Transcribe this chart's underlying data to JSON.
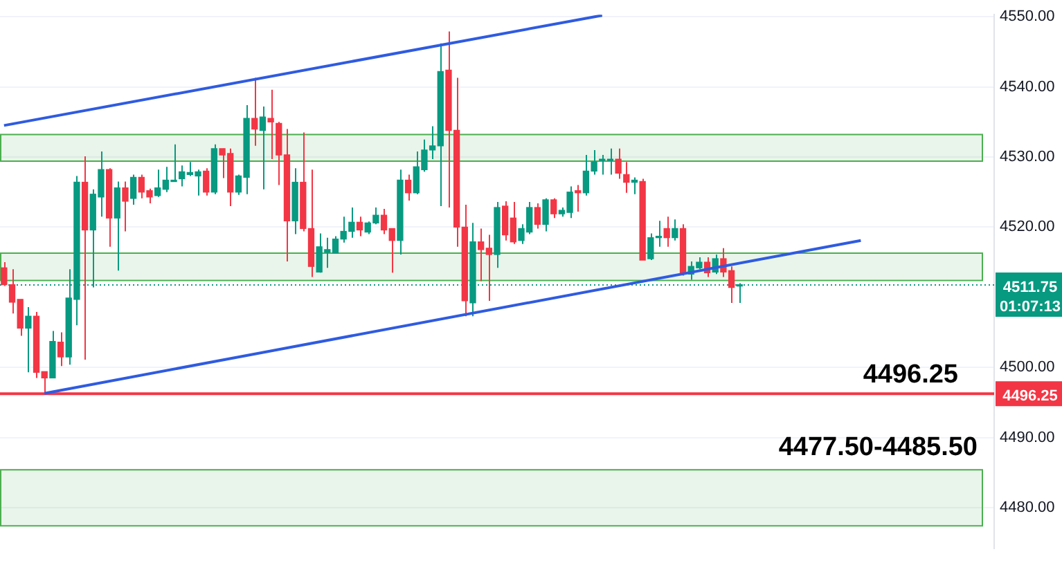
{
  "chart_data": {
    "type": "candlestick",
    "categories": [
      null,
      null,
      null,
      null,
      null,
      null,
      null,
      null,
      null,
      null,
      null,
      null,
      null,
      null,
      null,
      null,
      null,
      null,
      null,
      null,
      null,
      null,
      null,
      null,
      null,
      null,
      null,
      null,
      null,
      null,
      null,
      null,
      null,
      null,
      null,
      null,
      null,
      null,
      null,
      null,
      null,
      null,
      null,
      null,
      null,
      null,
      null,
      null,
      null,
      null,
      null,
      null,
      null,
      null,
      null,
      null,
      null,
      null,
      null,
      null,
      null,
      null,
      null,
      null,
      null,
      null,
      null,
      null,
      null,
      null,
      null,
      null,
      null,
      null,
      null,
      null,
      null,
      null,
      null,
      null,
      null,
      null,
      null,
      null,
      null,
      null,
      null,
      null,
      null,
      null,
      null,
      null,
      null,
      null,
      null,
      null,
      null,
      null,
      null,
      null,
      null,
      null,
      null,
      null,
      null,
      null,
      null,
      null,
      null,
      null,
      null,
      null,
      null,
      null,
      null,
      null,
      null,
      null,
      null,
      null,
      null,
      null,
      null
    ],
    "ohlc": [
      [
        4514.2,
        4515,
        4511.6,
        4511.8
      ],
      [
        4511.8,
        4514,
        4507.7,
        4509.3
      ],
      [
        4509.7,
        4509.7,
        4504.5,
        4505.6
      ],
      [
        4505.6,
        4508.6,
        4499.3,
        4507.3
      ],
      [
        4507.3,
        4507.9,
        4498.5,
        4499.3
      ],
      [
        4499.4,
        4499.4,
        4496.25,
        4498.5
      ],
      [
        4498.5,
        4505.2,
        4498.5,
        4503.7
      ],
      [
        4503.6,
        4505,
        4500.2,
        4501.5
      ],
      [
        4501.5,
        4514,
        4500.4,
        4509.9
      ],
      [
        4509.7,
        4527.3,
        4506,
        4526.4
      ],
      [
        4526.4,
        4530.1,
        4501.1,
        4519.6
      ],
      [
        4519.6,
        4525.4,
        4511.4,
        4524.7
      ],
      [
        4524.3,
        4530.8,
        4521.5,
        4528.2
      ],
      [
        4528.2,
        4528.4,
        4517.2,
        4521.3
      ],
      [
        4521.3,
        4526.5,
        4513.8,
        4525.6
      ],
      [
        4525.6,
        4526.5,
        4519.4,
        4523.7
      ],
      [
        4524.1,
        4527.5,
        4523.2,
        4527.1
      ],
      [
        4527.1,
        4527.5,
        4524.1,
        4525
      ],
      [
        4525.2,
        4525.5,
        4523.4,
        4524.3
      ],
      [
        4524.5,
        4528.2,
        4524.3,
        4525.6
      ],
      [
        4525.4,
        4528.6,
        4525,
        4526.7
      ],
      [
        4526.5,
        4531.8,
        4526.5,
        4526.7
      ],
      [
        4526.9,
        4528.8,
        4525.8,
        4527.9
      ],
      [
        4527.5,
        4529.3,
        4527.3,
        4527.8
      ],
      [
        4527.3,
        4528.2,
        4524.5,
        4527.9
      ],
      [
        4528,
        4528.4,
        4524.5,
        4525
      ],
      [
        4525,
        4531.8,
        4524.7,
        4531.2
      ],
      [
        4531.2,
        4531.2,
        4527,
        4530.3
      ],
      [
        4530.5,
        4531.2,
        4523,
        4525
      ],
      [
        4525,
        4527.5,
        4524.6,
        4527.3
      ],
      [
        4527.1,
        4537.4,
        4524.7,
        4535.5
      ],
      [
        4535.5,
        4541.3,
        4531.6,
        4534
      ],
      [
        4533.8,
        4537.2,
        4525.4,
        4535.7
      ],
      [
        4535.5,
        4539.6,
        4529.7,
        4535
      ],
      [
        4534.8,
        4535,
        4526,
        4530.3
      ],
      [
        4530.3,
        4534,
        4515.1,
        4520.9
      ],
      [
        4520.9,
        4528.4,
        4519,
        4526.4
      ],
      [
        4526.4,
        4533.5,
        4519.4,
        4519.8
      ],
      [
        4519.8,
        4528.2,
        4512.9,
        4514.4
      ],
      [
        4513.6,
        4519.1,
        4513.5,
        4517.2
      ],
      [
        4516.4,
        4518.5,
        4514.2,
        4516.8
      ],
      [
        4516.3,
        4518.7,
        4516.3,
        4518.3
      ],
      [
        4518.3,
        4521.5,
        4517.8,
        4519.4
      ],
      [
        4519.4,
        4522.8,
        4518.5,
        4520.7
      ],
      [
        4520.7,
        4521.5,
        4518.7,
        4519.6
      ],
      [
        4519.3,
        4520.8,
        4519,
        4520.6
      ],
      [
        4520.6,
        4522.8,
        4520.4,
        4521.7
      ],
      [
        4521.7,
        4522.6,
        4519,
        4519.6
      ],
      [
        4519.8,
        4519.8,
        4513.5,
        4518.1
      ],
      [
        4518.1,
        4528.2,
        4516.1,
        4526.7
      ],
      [
        4526.7,
        4527.5,
        4523.8,
        4524.9
      ],
      [
        4524.9,
        4530.8,
        4524.7,
        4528.6
      ],
      [
        4528.2,
        4532.5,
        4527.9,
        4531
      ],
      [
        4531,
        4534.4,
        4529.7,
        4531.6
      ],
      [
        4531.6,
        4546.2,
        4523,
        4542.2
      ],
      [
        4542.4,
        4547.9,
        4522.8,
        4533.8
      ],
      [
        4533.8,
        4541.3,
        4517.2,
        4520
      ],
      [
        4520,
        4523.2,
        4507.3,
        4509.5
      ],
      [
        4509.2,
        4520.6,
        4507.3,
        4517.9
      ],
      [
        4517.9,
        4519.8,
        4512.3,
        4516.8
      ],
      [
        4517,
        4518.9,
        4509.5,
        4516.1
      ],
      [
        4516.1,
        4523.6,
        4514.2,
        4522.8
      ],
      [
        4523,
        4523.7,
        4518.1,
        4518.9
      ],
      [
        4521.3,
        4523.6,
        4517.6,
        4517.9
      ],
      [
        4518.1,
        4520.4,
        4517.6,
        4519.8
      ],
      [
        4519.3,
        4523.6,
        4519,
        4522.8
      ],
      [
        4522.8,
        4523.4,
        4519.8,
        4520.4
      ],
      [
        4520.4,
        4524.1,
        4519.4,
        4523.9
      ],
      [
        4523.9,
        4524.1,
        4521.3,
        4521.9
      ],
      [
        4521.9,
        4522.8,
        4521.5,
        4522.4
      ],
      [
        4522.1,
        4525.8,
        4521.3,
        4525
      ],
      [
        4525.2,
        4526,
        4522.2,
        4524.9
      ],
      [
        4524.9,
        4530.3,
        4524.5,
        4528
      ],
      [
        4528,
        4531,
        4527.5,
        4529.3
      ],
      [
        4529.5,
        4530.3,
        4527.5,
        4529.7
      ],
      [
        4529.5,
        4531.2,
        4527.5,
        4529.7
      ],
      [
        4529.7,
        4531.2,
        4526.9,
        4527.7
      ],
      [
        4527.5,
        4529.3,
        4524.9,
        4526.4
      ],
      [
        4526.4,
        4527.1,
        4524.7,
        4526.7
      ],
      [
        4526.5,
        4526.9,
        4515.3,
        4515.3
      ],
      [
        4515.5,
        4519.1,
        4515.3,
        4518.5
      ],
      [
        4518.5,
        4520.9,
        4517.2,
        4518.7
      ],
      [
        4519.8,
        4521.5,
        4517.2,
        4518.5
      ],
      [
        4518.5,
        4521.1,
        4518.1,
        4519.8
      ],
      [
        4519.8,
        4520.4,
        4513.1,
        4513.3
      ],
      [
        4513.3,
        4515.1,
        4512.5,
        4514.4
      ],
      [
        4514.2,
        4515.7,
        4514,
        4515
      ],
      [
        4515,
        4515.7,
        4512.9,
        4513.5
      ],
      [
        4513.6,
        4516.1,
        4513.3,
        4515.5
      ],
      [
        4515.5,
        4517,
        4512.9,
        4513.6
      ],
      [
        4513.8,
        4514.4,
        4509.2,
        4511.4
      ],
      [
        4511.6,
        4512,
        4509.2,
        4511.75
      ],
      null,
      null,
      null,
      null,
      null,
      null,
      null,
      null,
      null,
      null,
      null,
      null,
      null,
      null,
      null,
      null,
      null,
      null,
      null,
      null,
      null,
      null,
      null,
      null,
      null,
      null,
      null,
      null,
      null,
      null,
      null
    ],
    "colors": [
      "#f23645",
      "#f23645",
      "#f23645",
      "#089981",
      "#f23645",
      "#f23645",
      "#089981",
      "#f23645",
      "#089981",
      "#089981",
      "#f23645",
      "#089981",
      "#089981",
      "#f23645",
      "#089981",
      "#f23645",
      "#089981",
      "#f23645",
      "#f23645",
      "#089981",
      "#089981",
      "#089981",
      "#089981",
      "#089981",
      "#089981",
      "#f23645",
      "#089981",
      "#f23645",
      "#f23645",
      "#089981",
      "#089981",
      "#f23645",
      "#089981",
      "#f23645",
      "#f23645",
      "#f23645",
      "#089981",
      "#f23645",
      "#f23645",
      "#089981",
      "#089981",
      "#089981",
      "#089981",
      "#089981",
      "#f23645",
      "#089981",
      "#089981",
      "#f23645",
      "#f23645",
      "#089981",
      "#f23645",
      "#089981",
      "#089981",
      "#089981",
      "#089981",
      "#f23645",
      "#f23645",
      "#f23645",
      "#089981",
      "#f23645",
      "#f23645",
      "#089981",
      "#f23645",
      "#f23645",
      "#089981",
      "#089981",
      "#f23645",
      "#089981",
      "#f23645",
      "#089981",
      "#089981",
      "#f23645",
      "#089981",
      "#089981",
      "#089981",
      "#089981",
      "#f23645",
      "#f23645",
      "#089981",
      "#f23645",
      "#089981",
      "#089981",
      "#f23645",
      "#089981",
      "#f23645",
      "#089981",
      "#089981",
      "#f23645",
      "#089981",
      "#f23645",
      "#f23645",
      "#089981",
      null,
      null,
      null,
      null,
      null,
      null,
      null,
      null,
      null,
      null,
      null,
      null,
      null,
      null,
      null,
      null,
      null,
      null,
      null,
      null,
      null,
      null,
      null,
      null,
      null,
      null,
      null,
      null,
      null,
      null,
      null
    ],
    "series": [
      {
        "type": "line",
        "color": "#2f5be0",
        "values": [
          4534.5,
          null,
          null,
          null,
          null,
          null,
          null,
          null,
          null,
          null,
          null,
          null,
          null,
          null,
          null,
          null,
          null,
          null,
          null,
          null,
          null,
          null,
          null,
          null,
          null,
          null,
          null,
          null,
          null,
          null,
          null,
          null,
          null,
          null,
          null,
          null,
          null,
          null,
          null,
          null,
          null,
          null,
          null,
          null,
          null,
          null,
          null,
          null,
          null,
          null,
          null,
          null,
          null,
          null,
          null,
          null,
          null,
          null,
          null,
          null,
          null,
          null,
          null,
          null,
          null,
          null,
          null,
          null,
          null,
          null,
          null,
          null,
          null,
          null,
          4550.2,
          null,
          null,
          null,
          null,
          null,
          null,
          null,
          null,
          null,
          null,
          null,
          null,
          null,
          null,
          null,
          null,
          null,
          null,
          null,
          null,
          null,
          null,
          null,
          null,
          null,
          null,
          null,
          null,
          null,
          null,
          null,
          null,
          null,
          null,
          null,
          null,
          null,
          null,
          null,
          null,
          null,
          null,
          null,
          null,
          null,
          null,
          null,
          null
        ]
      },
      {
        "type": "line",
        "color": "#2f5be0",
        "values": [
          null,
          null,
          null,
          null,
          null,
          4496.3,
          null,
          null,
          null,
          null,
          null,
          null,
          null,
          null,
          null,
          null,
          null,
          null,
          null,
          null,
          null,
          null,
          null,
          null,
          null,
          null,
          null,
          null,
          null,
          null,
          null,
          null,
          null,
          null,
          null,
          null,
          null,
          null,
          null,
          null,
          null,
          null,
          null,
          null,
          null,
          null,
          null,
          null,
          null,
          null,
          null,
          null,
          null,
          null,
          null,
          null,
          null,
          null,
          null,
          null,
          null,
          null,
          null,
          null,
          null,
          null,
          null,
          null,
          null,
          null,
          null,
          null,
          null,
          null,
          null,
          null,
          null,
          null,
          null,
          null,
          null,
          null,
          null,
          null,
          null,
          null,
          null,
          null,
          null,
          null,
          null,
          null,
          null,
          null,
          null,
          null,
          null,
          null,
          null,
          null,
          null,
          null,
          null,
          null,
          null,
          null,
          4518.1,
          null,
          null,
          null,
          null,
          null,
          null,
          null,
          null,
          null,
          null,
          null,
          null,
          null,
          null,
          null,
          null
        ]
      }
    ],
    "annotations": [
      "01:07:13"
    ],
    "ylim": [
      4474.2,
      4550.3
    ],
    "yticks": [
      {
        "value": 4480,
        "label": "4480.00"
      },
      {
        "value": 4490,
        "label": "4490.00"
      },
      {
        "value": 4500,
        "label": "4500.00"
      },
      {
        "value": 4520,
        "label": "4520.00"
      },
      {
        "value": 4530,
        "label": "4530.00"
      },
      {
        "value": 4540,
        "label": "4540.00"
      },
      {
        "value": 4550,
        "label": "4550.00"
      }
    ],
    "ref_lines": [
      {
        "axis": "y",
        "value": 4496.25,
        "label": "4496.25",
        "color": "#f23645",
        "line_style": "solid"
      },
      {
        "axis": "y",
        "value": 4511.75,
        "label": "4511.75",
        "color": "#089981",
        "line_style": "dotted"
      }
    ],
    "bands": [
      {
        "axis": "y",
        "from": 4529.5,
        "to": 4533.3,
        "color": "#4caf50"
      },
      {
        "axis": "y",
        "from": 4512.5,
        "to": 4516.4,
        "color": "#4caf50"
      },
      {
        "axis": "y",
        "from": 4477.5,
        "to": 4485.5,
        "label": "4477.50-4485.50",
        "color": "#4caf50"
      }
    ],
    "grid": "y",
    "legend": false
  }
}
